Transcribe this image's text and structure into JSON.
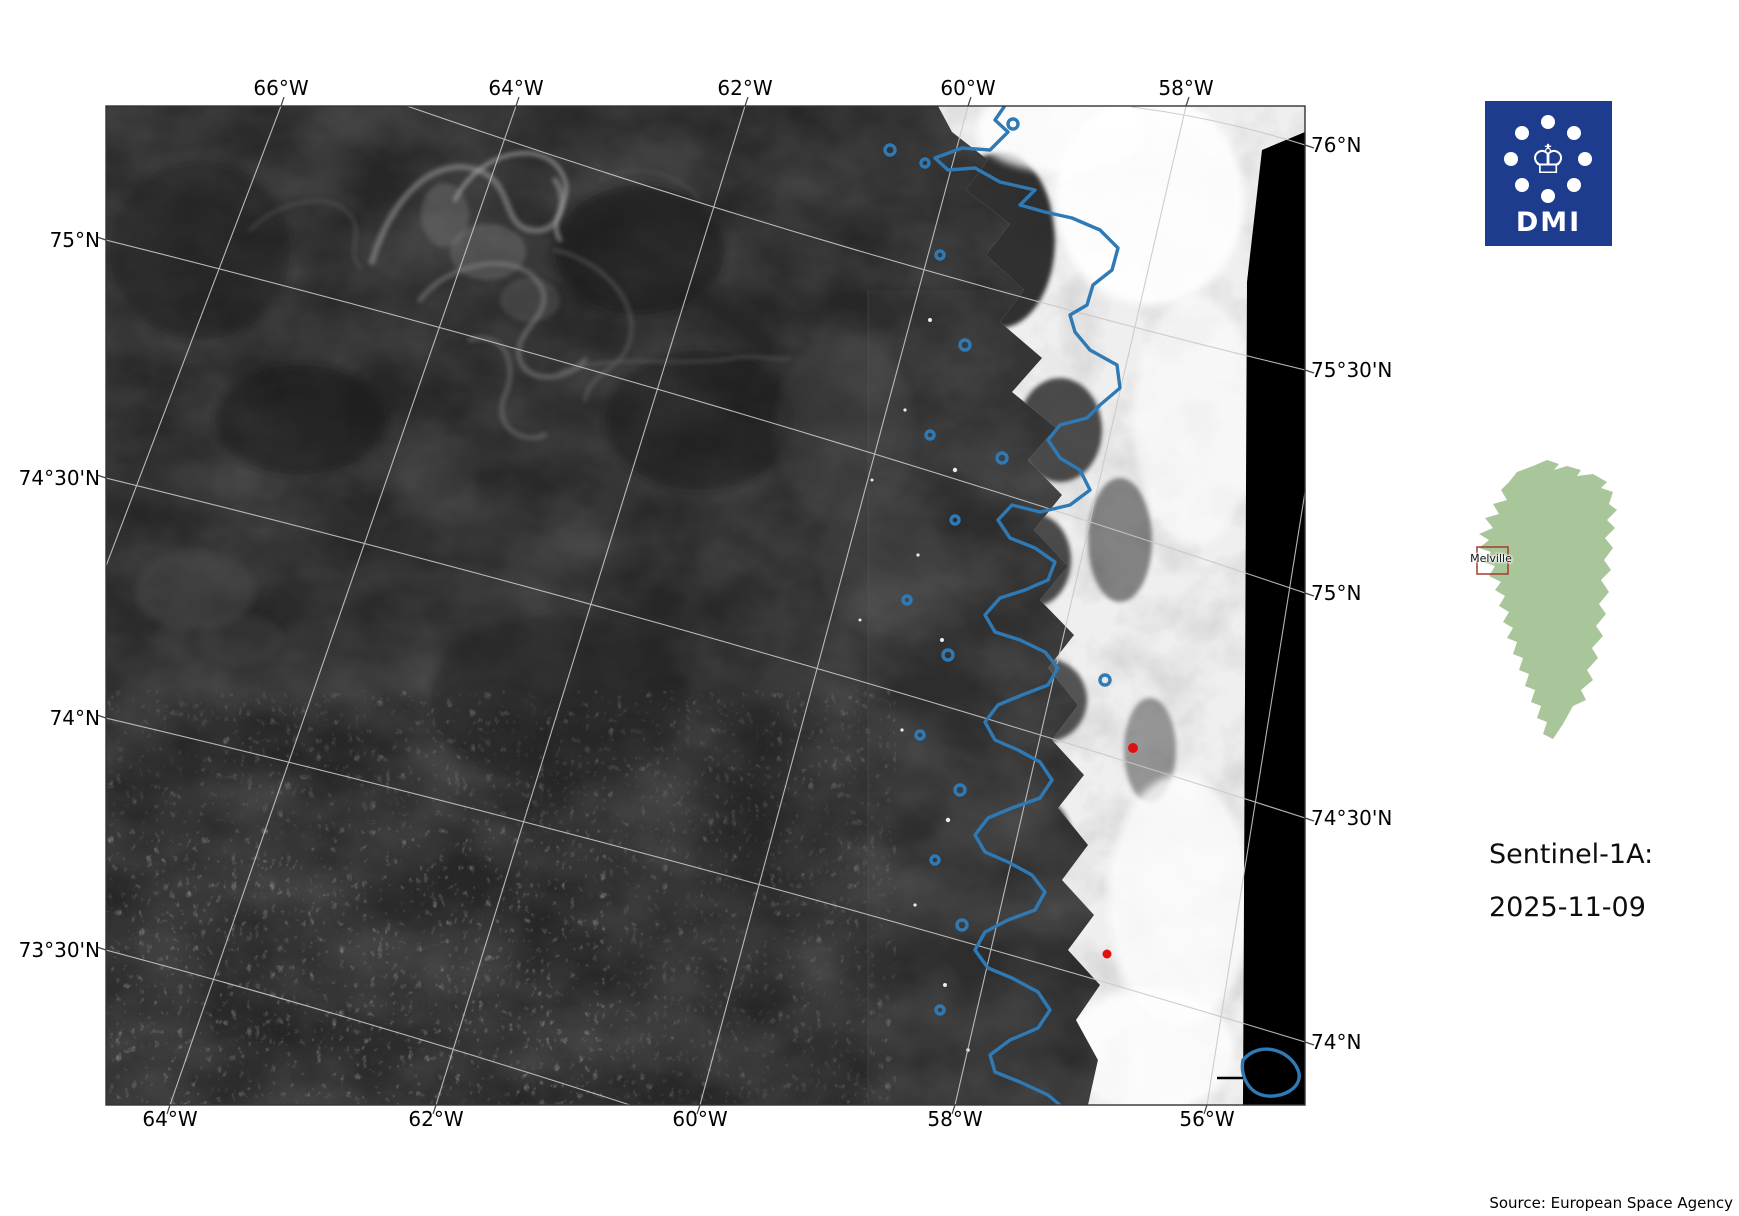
{
  "graticule": {
    "top": [
      "66°W",
      "64°W",
      "62°W",
      "60°W",
      "58°W"
    ],
    "bottom": [
      "64°W",
      "62°W",
      "60°W",
      "58°W",
      "56°W"
    ],
    "left": [
      "75°N",
      "74°30'N",
      "74°N",
      "73°30'N"
    ],
    "right": [
      "76°N",
      "75°30'N",
      "75°N",
      "74°30'N",
      "74°N"
    ]
  },
  "logo": {
    "label": "DMI"
  },
  "inset": {
    "label": "Melville"
  },
  "panel": {
    "satellite": "Sentinel-1A:",
    "date": "2025-11-09"
  },
  "footer": {
    "source": "Source: European Space Agency"
  },
  "colors": {
    "coastline": "#2f7ab5",
    "marker_red": "#e01010",
    "logo_bg": "#1d3c8d",
    "inset_land": "#a9c69b",
    "inset_box": "#a33c2f",
    "graticule": "#c8c8c8"
  }
}
